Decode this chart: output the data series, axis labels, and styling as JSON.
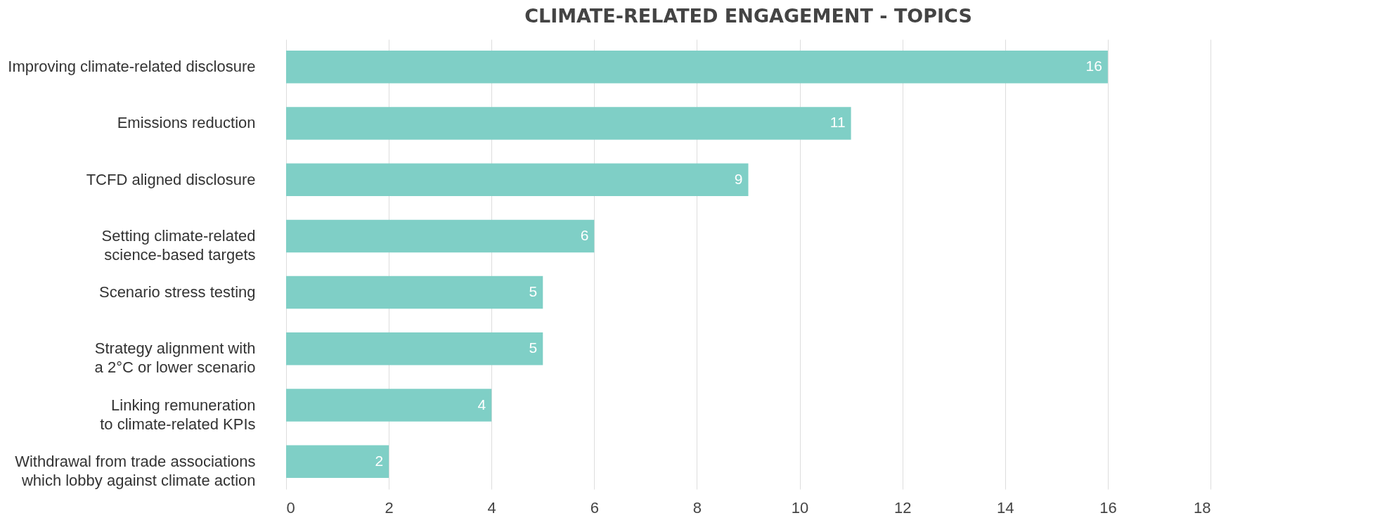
{
  "chart_data": {
    "type": "bar",
    "orientation": "horizontal",
    "title": "CLIMATE-RELATED ENGAGEMENT - TOPICS",
    "categories": [
      "Improving climate-related disclosure",
      "Emissions reduction",
      "TCFD aligned disclosure",
      "Setting climate-related science-based targets",
      "Scenario stress testing",
      "Strategy alignment with a 2°C or lower scenario",
      "Linking remuneration to climate-related KPIs",
      "Withdrawal from trade associations which lobby against climate action"
    ],
    "values": [
      16,
      11,
      9,
      6,
      5,
      5,
      4,
      2
    ],
    "color": "#7fcfc6",
    "xlim": [
      0,
      18
    ],
    "xticks": [
      0,
      2,
      4,
      6,
      8,
      10,
      12,
      14,
      16,
      18
    ],
    "grid": "x",
    "data_labels": true
  }
}
